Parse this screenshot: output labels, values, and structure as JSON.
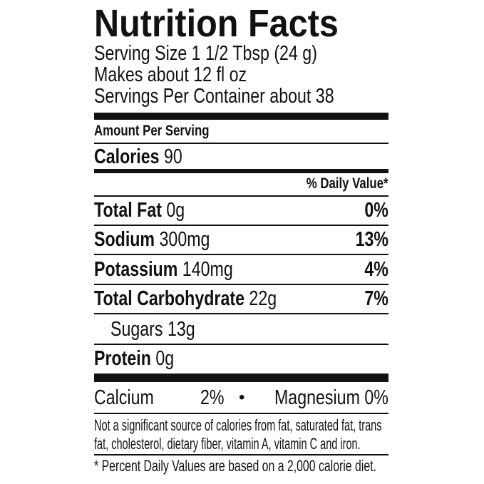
{
  "title": "Nutrition Facts",
  "serving": {
    "size": "Serving Size 1 1/2 Tbsp (24 g)",
    "makes": "Makes about 12 fl oz",
    "per_container": "Servings Per Container about 38"
  },
  "amount_per_serving": "Amount Per Serving",
  "calories": {
    "label": "Calories",
    "value": "90"
  },
  "daily_value_header": "% Daily Value*",
  "nutrients": [
    {
      "label": "Total Fat",
      "amount": "0g",
      "dv": "0%"
    },
    {
      "label": "Sodium",
      "amount": "300mg",
      "dv": "13%"
    },
    {
      "label": "Potassium",
      "amount": "140mg",
      "dv": "4%"
    },
    {
      "label": "Total Carbohydrate",
      "amount": "22g",
      "dv": "7%"
    },
    {
      "label": "Sugars",
      "amount": "13g",
      "dv": ""
    },
    {
      "label": "Protein",
      "amount": "0g",
      "dv": ""
    }
  ],
  "minerals": {
    "calcium_label": "Calcium",
    "calcium_value": "2%",
    "bullet": "•",
    "magnesium_label": "Magnesium",
    "magnesium_value": "0%"
  },
  "note": [
    "Not a significant source of calories from fat, saturated fat, trans",
    "fat, cholesterol, dietary fiber, vitamin A, vitamin C and iron."
  ],
  "footnote": "* Percent Daily Values are based on a 2,000 calorie diet."
}
